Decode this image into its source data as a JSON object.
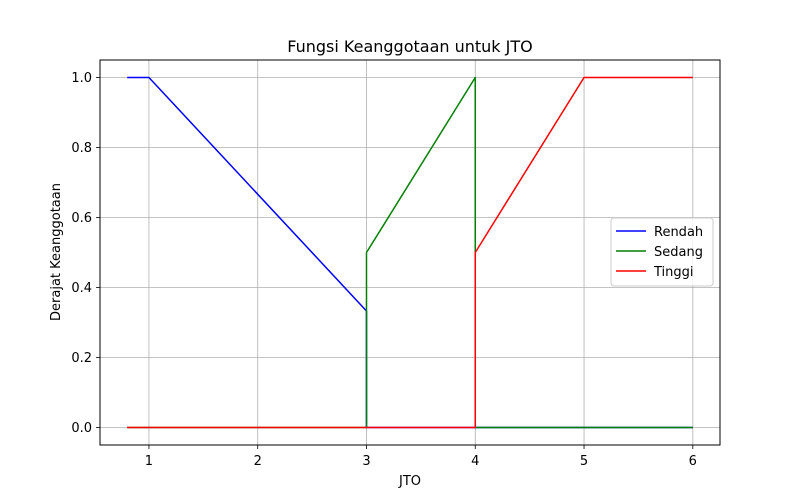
{
  "chart_data": {
    "type": "line",
    "title": "Fungsi Keanggotaan untuk JTO",
    "xlabel": "JTO",
    "ylabel": "Derajat Keanggotaan",
    "xlim": [
      0.55,
      6.25
    ],
    "ylim": [
      -0.05,
      1.05
    ],
    "xticks": [
      1,
      2,
      3,
      4,
      5,
      6
    ],
    "yticks": [
      0.0,
      0.2,
      0.4,
      0.6,
      0.8,
      1.0
    ],
    "xtick_labels": [
      "1",
      "2",
      "3",
      "4",
      "5",
      "6"
    ],
    "ytick_labels": [
      "0.0",
      "0.2",
      "0.4",
      "0.6",
      "0.8",
      "1.0"
    ],
    "grid": true,
    "legend_position": "center-right",
    "series": [
      {
        "name": "Rendah",
        "color": "#0000ff",
        "x": [
          0.8,
          1.0,
          3.0,
          3.0,
          4.0,
          6.0
        ],
        "y": [
          1.0,
          1.0,
          0.333,
          0.0,
          0.0,
          0.0
        ]
      },
      {
        "name": "Sedang",
        "color": "#008000",
        "x": [
          0.8,
          3.0,
          3.0,
          4.0,
          4.0,
          6.0
        ],
        "y": [
          0.0,
          0.0,
          0.5,
          1.0,
          0.0,
          0.0
        ]
      },
      {
        "name": "Tinggi",
        "color": "#ff0000",
        "x": [
          0.8,
          4.0,
          4.0,
          5.0,
          6.0
        ],
        "y": [
          0.0,
          0.0,
          0.5,
          1.0,
          1.0
        ]
      }
    ]
  }
}
